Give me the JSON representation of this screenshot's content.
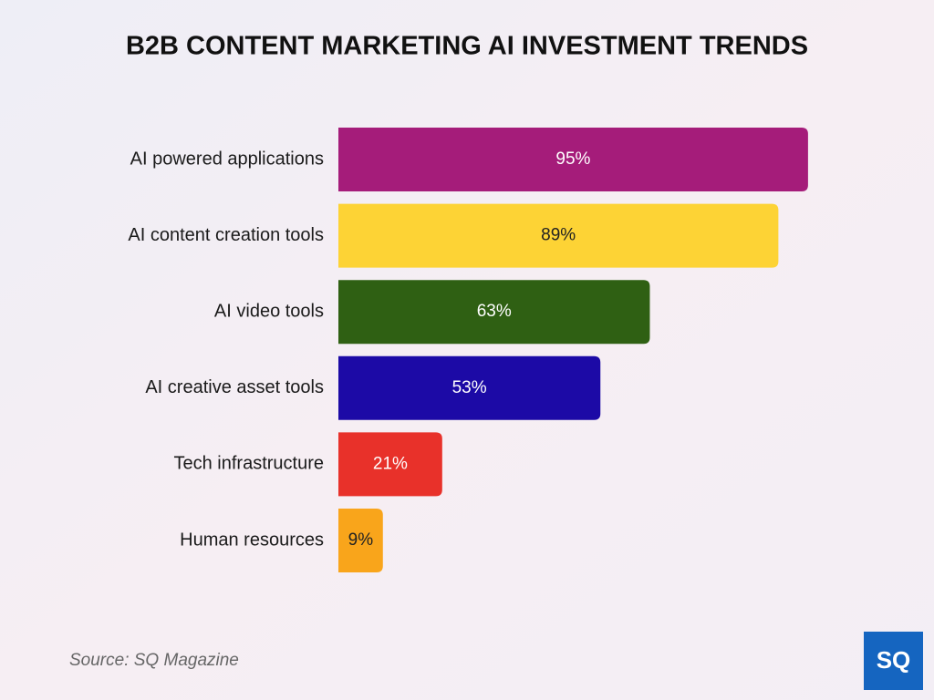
{
  "chart_data": {
    "type": "bar",
    "orientation": "horizontal",
    "title": "B2B CONTENT MARKETING AI INVESTMENT TRENDS",
    "categories": [
      "AI powered applications",
      "AI content creation tools",
      "AI video tools",
      "AI creative asset tools",
      "Tech infrastructure",
      "Human resources"
    ],
    "values": [
      95,
      89,
      63,
      53,
      21,
      9
    ],
    "value_labels": [
      "95%",
      "89%",
      "63%",
      "53%",
      "21%",
      "9%"
    ],
    "colors": [
      "#a51c7a",
      "#fdd335",
      "#2f6013",
      "#1c0aa6",
      "#e8312a",
      "#f9a51b"
    ],
    "xlim": [
      0,
      100
    ],
    "source": "Source: SQ Magazine",
    "logo": "SQ"
  }
}
